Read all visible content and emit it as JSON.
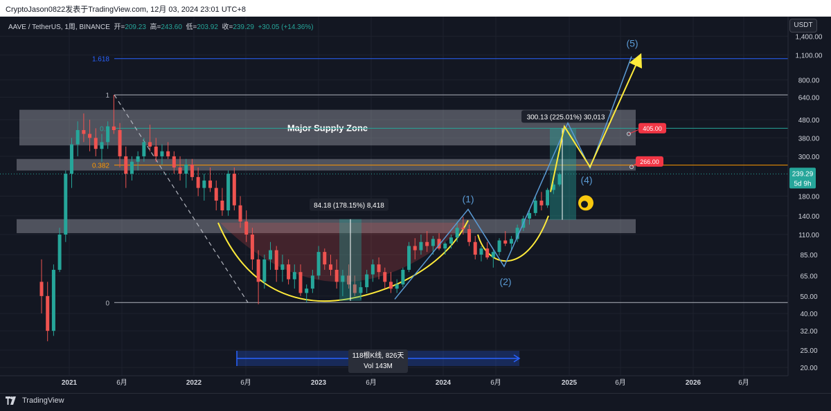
{
  "header": {
    "publisher": "CryptoJason0822发表于TradingView.com, 12月 03, 2024 23:01 UTC+8"
  },
  "symbol_info": {
    "symbol": "AAVE / TetherUS, 1周, BINANCE",
    "open_label": "开=",
    "open": "209.23",
    "high_label": "高=",
    "high": "243.60",
    "low_label": "低=",
    "low": "203.92",
    "close_label": "收=",
    "close": "239.29",
    "change": "+30.05 (+14.36%)"
  },
  "currency_button": "USDT",
  "footer": {
    "brand": "TradingView"
  },
  "colors": {
    "background": "#131722",
    "up": "#26a69a",
    "down": "#ef5350",
    "fib_line": "#2962ff",
    "yellow": "#ffeb3b",
    "blue_wave": "#5b9bd5",
    "target_label": "#f23645"
  },
  "chart_data": {
    "type": "candlestick",
    "y_scale": "log",
    "ylim": [
      18,
      1800
    ],
    "x_ticks": [
      "2021",
      "6月",
      "2022",
      "6月",
      "2023",
      "6月",
      "2024",
      "6月",
      "2025",
      "6月",
      "2026",
      "6月"
    ],
    "y_ticks": [
      "1,400.00",
      "1,100.00",
      "800.00",
      "640.00",
      "480.00",
      "380.00",
      "300.00",
      "180.00",
      "140.00",
      "110.00",
      "85.00",
      "65.00",
      "50.00",
      "40.00",
      "32.00",
      "25.00",
      "20.00"
    ],
    "current_price": {
      "value": "239.29",
      "countdown": "5d 9h"
    },
    "fib_levels": [
      {
        "label": "1.618",
        "value": 1050
      },
      {
        "label": "1",
        "value": 660
      },
      {
        "label": "0.5",
        "value": 430
      },
      {
        "label": "0.382",
        "value": 268
      },
      {
        "label": "0",
        "value": 46
      }
    ],
    "zones": [
      {
        "label": "Major Supply Zone",
        "from": 345,
        "to": 545
      },
      {
        "label": "",
        "from": 250,
        "to": 290
      },
      {
        "label": "",
        "from": 112,
        "to": 134
      }
    ],
    "price_targets": [
      "405.00",
      "266.00"
    ],
    "wave_labels": [
      "(1)",
      "(2)",
      "(4)",
      "(5)"
    ],
    "measurements": [
      {
        "label": "84.18 (178.15%) 8,418"
      },
      {
        "label": "300.13 (225.01%) 30,013"
      },
      {
        "label": "118根K线, 826天",
        "sub": "Vol 143M"
      }
    ],
    "series": [
      {
        "values": [
          [
            60,
            80,
            40,
            50
          ],
          [
            50,
            60,
            28,
            32
          ],
          [
            32,
            75,
            30,
            70
          ],
          [
            70,
            120,
            68,
            110
          ],
          [
            110,
            250,
            100,
            240
          ],
          [
            240,
            380,
            200,
            350
          ],
          [
            350,
            470,
            300,
            420
          ],
          [
            420,
            520,
            360,
            400
          ],
          [
            400,
            480,
            320,
            380
          ],
          [
            380,
            430,
            300,
            330
          ],
          [
            330,
            400,
            280,
            360
          ],
          [
            360,
            470,
            330,
            440
          ],
          [
            440,
            660,
            400,
            420
          ],
          [
            420,
            460,
            260,
            300
          ],
          [
            300,
            340,
            200,
            240
          ],
          [
            240,
            300,
            220,
            280
          ],
          [
            280,
            320,
            250,
            300
          ],
          [
            300,
            380,
            280,
            360
          ],
          [
            360,
            450,
            320,
            340
          ],
          [
            340,
            380,
            280,
            300
          ],
          [
            300,
            350,
            270,
            320
          ],
          [
            320,
            360,
            290,
            300
          ],
          [
            300,
            320,
            240,
            260
          ],
          [
            260,
            300,
            220,
            240
          ],
          [
            240,
            290,
            200,
            270
          ],
          [
            270,
            290,
            220,
            230
          ],
          [
            230,
            260,
            180,
            200
          ],
          [
            200,
            240,
            170,
            220
          ],
          [
            220,
            260,
            190,
            200
          ],
          [
            200,
            220,
            150,
            170
          ],
          [
            170,
            200,
            140,
            150
          ],
          [
            150,
            250,
            140,
            240
          ],
          [
            240,
            260,
            150,
            160
          ],
          [
            160,
            180,
            120,
            130
          ],
          [
            130,
            150,
            100,
            110
          ],
          [
            110,
            120,
            70,
            80
          ],
          [
            80,
            90,
            45,
            60
          ],
          [
            60,
            85,
            55,
            80
          ],
          [
            80,
            100,
            70,
            90
          ],
          [
            90,
            95,
            60,
            70
          ],
          [
            70,
            85,
            60,
            75
          ],
          [
            75,
            80,
            58,
            62
          ],
          [
            62,
            75,
            55,
            68
          ],
          [
            68,
            75,
            50,
            52
          ],
          [
            52,
            58,
            46,
            55
          ],
          [
            55,
            70,
            52,
            65
          ],
          [
            65,
            95,
            62,
            88
          ],
          [
            88,
            92,
            70,
            75
          ],
          [
            75,
            85,
            65,
            70
          ],
          [
            70,
            80,
            55,
            60
          ],
          [
            60,
            70,
            50,
            65
          ],
          [
            65,
            75,
            55,
            58
          ],
          [
            58,
            65,
            50,
            52
          ],
          [
            52,
            60,
            48,
            56
          ],
          [
            56,
            70,
            52,
            66
          ],
          [
            66,
            80,
            60,
            75
          ],
          [
            75,
            82,
            62,
            68
          ],
          [
            68,
            72,
            55,
            60
          ],
          [
            60,
            68,
            52,
            55
          ],
          [
            55,
            62,
            52,
            58
          ],
          [
            58,
            72,
            56,
            70
          ],
          [
            70,
            100,
            68,
            95
          ],
          [
            95,
            105,
            80,
            90
          ],
          [
            90,
            110,
            85,
            100
          ],
          [
            100,
            115,
            88,
            95
          ],
          [
            95,
            108,
            85,
            104
          ],
          [
            104,
            112,
            90,
            92
          ],
          [
            92,
            100,
            85,
            98
          ],
          [
            98,
            110,
            92,
            106
          ],
          [
            106,
            130,
            100,
            120
          ],
          [
            120,
            138,
            110,
            118
          ],
          [
            118,
            125,
            95,
            100
          ],
          [
            100,
            108,
            80,
            85
          ],
          [
            85,
            95,
            78,
            92
          ],
          [
            92,
            100,
            80,
            82
          ],
          [
            82,
            90,
            72,
            88
          ],
          [
            88,
            105,
            84,
            102
          ],
          [
            102,
            115,
            95,
            98
          ],
          [
            98,
            108,
            90,
            104
          ],
          [
            104,
            125,
            100,
            120
          ],
          [
            120,
            140,
            115,
            135
          ],
          [
            135,
            150,
            125,
            145
          ],
          [
            145,
            180,
            140,
            170
          ],
          [
            170,
            190,
            150,
            160
          ],
          [
            160,
            200,
            155,
            195
          ],
          [
            195,
            215,
            185,
            209
          ],
          [
            209,
            244,
            204,
            239
          ]
        ]
      }
    ]
  }
}
